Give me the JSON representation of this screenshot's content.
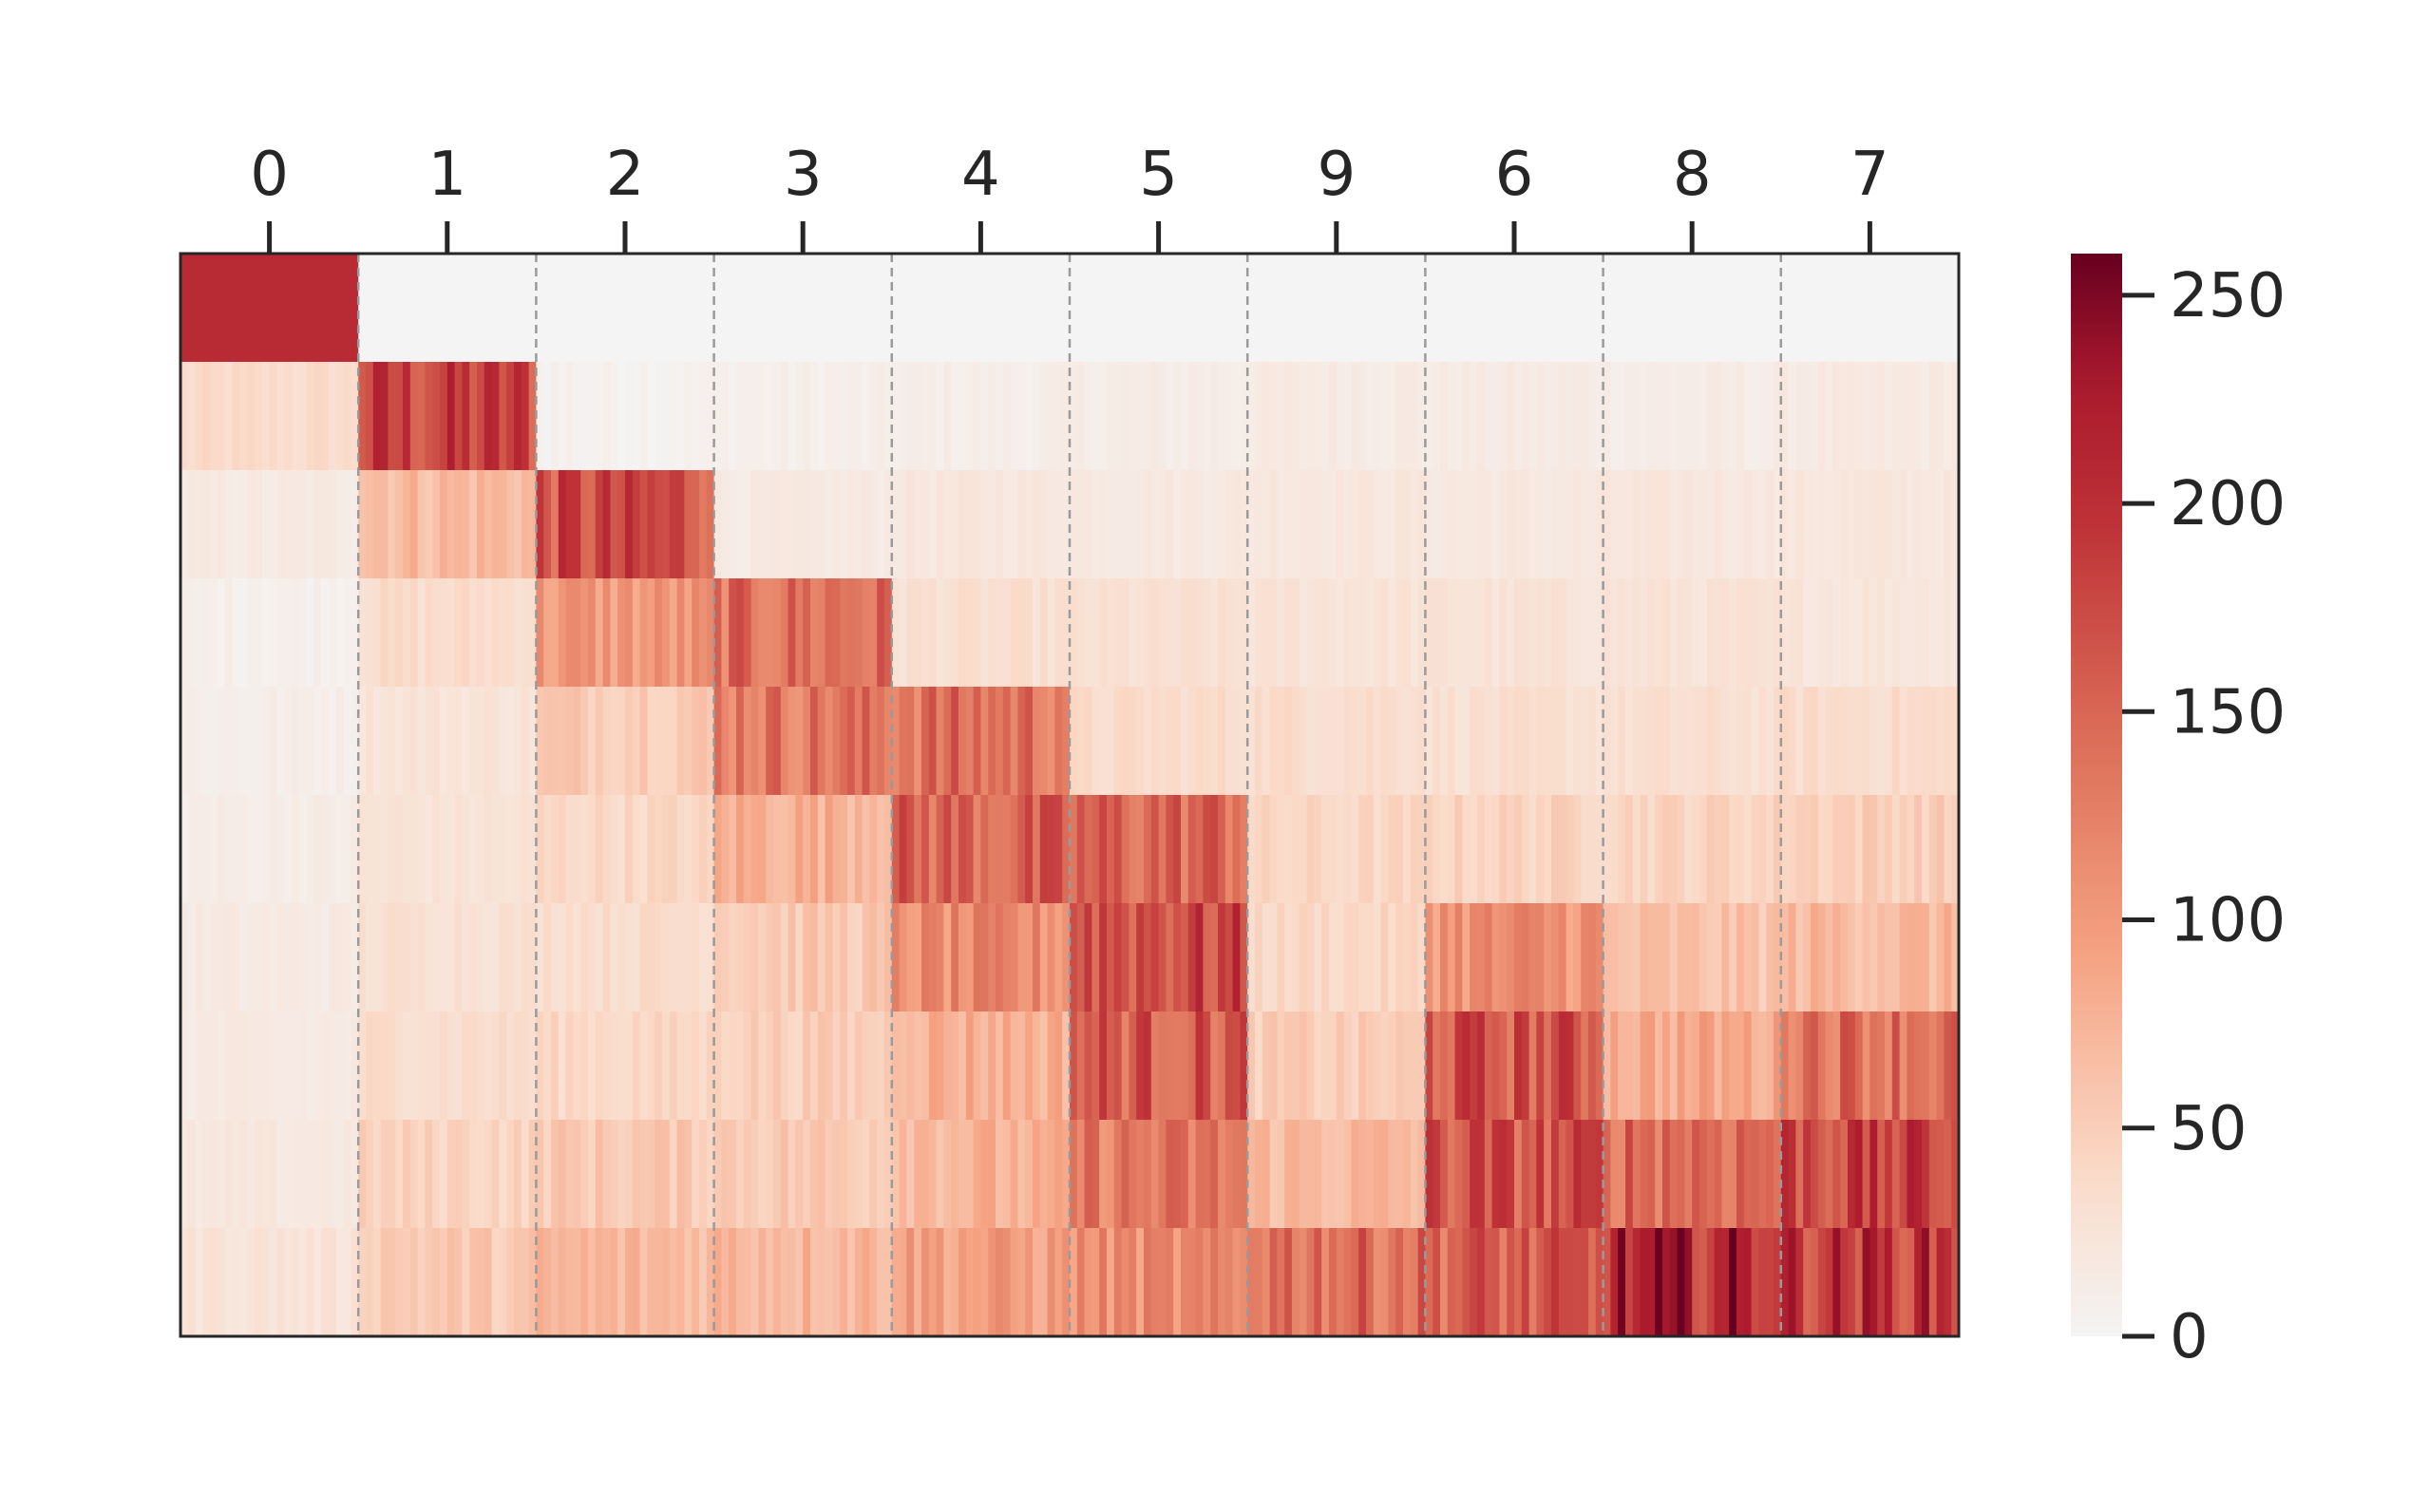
{
  "chart_data": {
    "type": "heatmap",
    "title": "",
    "xlabel": "",
    "ylabel": "",
    "x_tick_position": "top",
    "categories": [
      "0",
      "1",
      "2",
      "3",
      "4",
      "5",
      "9",
      "6",
      "8",
      "7"
    ],
    "row_count": 10,
    "value_range": [
      0,
      260
    ],
    "matrix_mean": [
      [
        205,
        0,
        0,
        0,
        0,
        0,
        0,
        0,
        0,
        0
      ],
      [
        35,
        180,
        5,
        8,
        10,
        12,
        15,
        14,
        12,
        15
      ],
      [
        15,
        70,
        170,
        15,
        20,
        18,
        20,
        18,
        20,
        20
      ],
      [
        8,
        35,
        100,
        140,
        30,
        28,
        25,
        25,
        25,
        22
      ],
      [
        10,
        25,
        55,
        135,
        140,
        35,
        35,
        30,
        30,
        35
      ],
      [
        12,
        25,
        40,
        80,
        150,
        150,
        40,
        45,
        45,
        50
      ],
      [
        15,
        30,
        35,
        55,
        110,
        175,
        40,
        110,
        60,
        70
      ],
      [
        15,
        35,
        40,
        50,
        80,
        160,
        50,
        165,
        85,
        145
      ],
      [
        18,
        45,
        55,
        55,
        75,
        130,
        70,
        165,
        150,
        180
      ],
      [
        25,
        55,
        70,
        75,
        95,
        110,
        145,
        155,
        210,
        195
      ]
    ],
    "grid": false,
    "column_separators": "dashed",
    "colormap": "RdBu_r (upper half)",
    "colorbar": {
      "ticks": [
        "0",
        "50",
        "100",
        "150",
        "200",
        "250"
      ],
      "tick_values": [
        0,
        50,
        100,
        150,
        200,
        250
      ],
      "range": [
        0,
        260
      ],
      "placement": "right"
    },
    "colors": {
      "low": "#f4f4f4",
      "mid": "#f5a383",
      "high": "#b2182b",
      "max": "#67001f",
      "separator": "#9a9a9a",
      "axis": "#262626"
    }
  }
}
